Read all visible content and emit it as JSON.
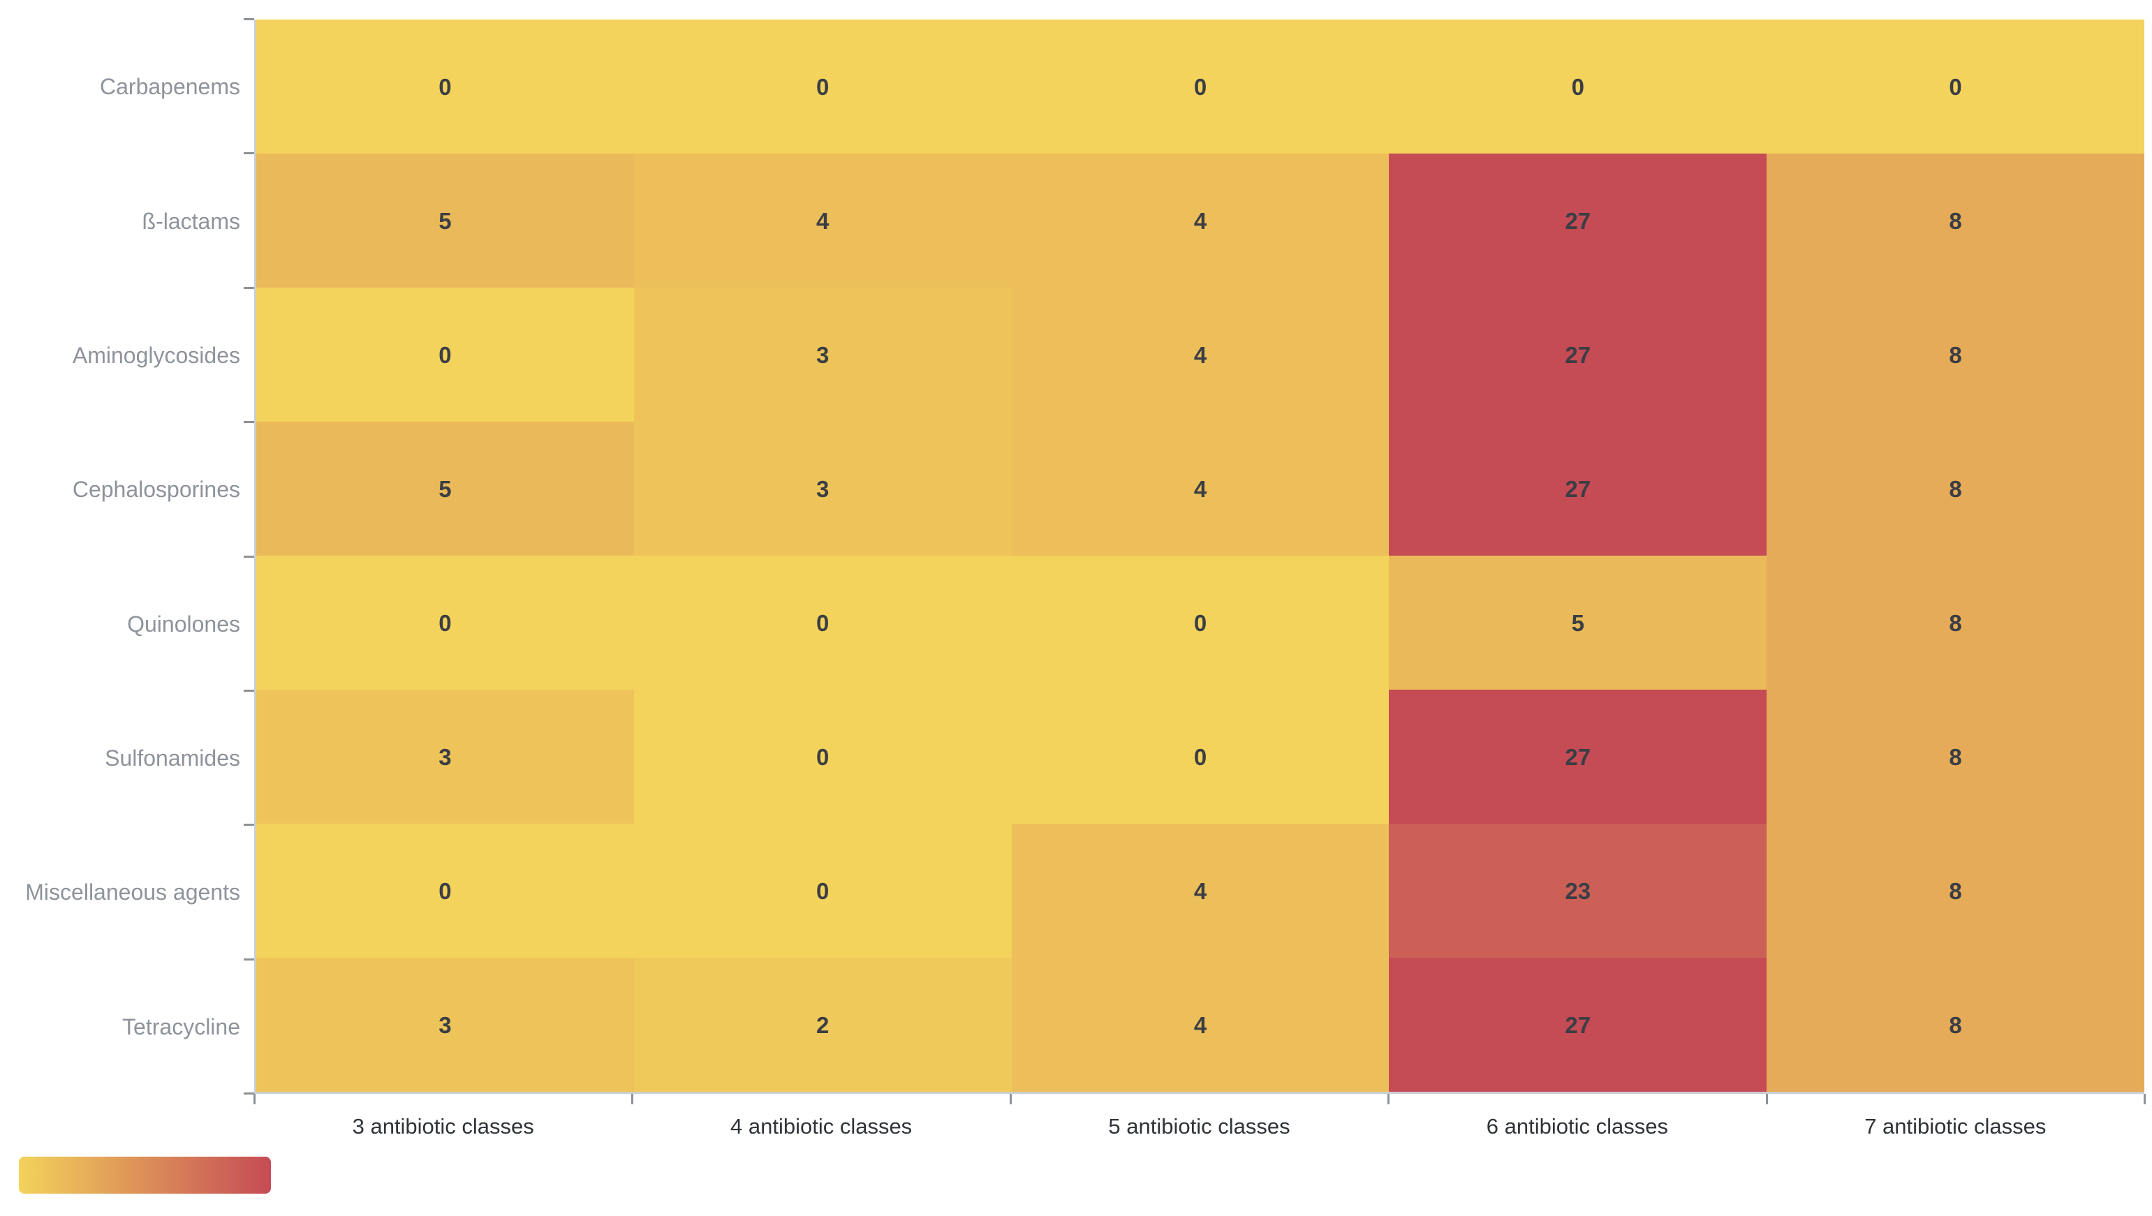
{
  "chart_data": {
    "type": "heatmap",
    "title": "",
    "x_categories": [
      "3 antibiotic classes",
      "4 antibiotic classes",
      "5 antibiotic classes",
      "6 antibiotic classes",
      "7 antibiotic classes"
    ],
    "y_categories": [
      "Carbapenems",
      "ß-lactams",
      "Aminoglycosides",
      "Cephalosporines",
      "Quinolones",
      "Sulfonamides",
      "Miscellaneous agents",
      "Tetracycline"
    ],
    "rows": [
      {
        "label": "Carbapenems",
        "values": [
          0,
          0,
          0,
          0,
          0
        ]
      },
      {
        "label": "ß-lactams",
        "values": [
          5,
          4,
          4,
          27,
          8
        ]
      },
      {
        "label": "Aminoglycosides",
        "values": [
          0,
          3,
          4,
          27,
          8
        ]
      },
      {
        "label": "Cephalosporines",
        "values": [
          5,
          3,
          4,
          27,
          8
        ]
      },
      {
        "label": "Quinolones",
        "values": [
          0,
          0,
          0,
          5,
          8
        ]
      },
      {
        "label": "Sulfonamides",
        "values": [
          3,
          0,
          0,
          27,
          8
        ]
      },
      {
        "label": "Miscellaneous agents",
        "values": [
          0,
          0,
          4,
          23,
          8
        ]
      },
      {
        "label": "Tetracycline",
        "values": [
          3,
          2,
          4,
          27,
          8
        ]
      }
    ],
    "value_domain": [
      0,
      27
    ],
    "grid": false,
    "legend": {
      "style": "gradient-bar",
      "position": "bottom-left"
    },
    "colors": {
      "colormap_min": "#F3D35B",
      "colormap_max": "#C54B55",
      "axis_line": "#CBCED2",
      "tick": "#8D9298",
      "y_label_text": "#8E939B",
      "x_label_text": "#303439",
      "cell_value_text": "#3B3E44",
      "background": "#FFFFFF"
    }
  }
}
